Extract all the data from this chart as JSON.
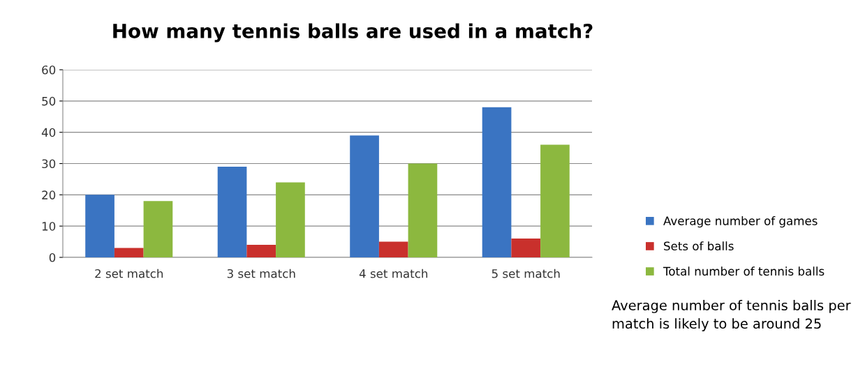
{
  "chart_data": {
    "type": "bar",
    "title": "How many tennis balls are used in a match?",
    "categories": [
      "2 set match",
      "3 set match",
      "4 set match",
      "5 set match"
    ],
    "series": [
      {
        "name": "Average number of games",
        "color": "#3a74c2",
        "values": [
          20,
          29,
          39,
          48
        ]
      },
      {
        "name": "Sets of balls",
        "color": "#c9302c",
        "values": [
          3,
          4,
          5,
          6
        ]
      },
      {
        "name": "Total number of tennis balls",
        "color": "#8cb83f",
        "values": [
          18,
          24,
          30,
          36
        ]
      }
    ],
    "ylim": [
      0,
      60
    ],
    "yticks": [
      0,
      10,
      20,
      30,
      40,
      50,
      60
    ],
    "grid": "y",
    "legend": "right",
    "annotations": [
      "Average number of tennis balls per match is likely to be around 25"
    ]
  }
}
